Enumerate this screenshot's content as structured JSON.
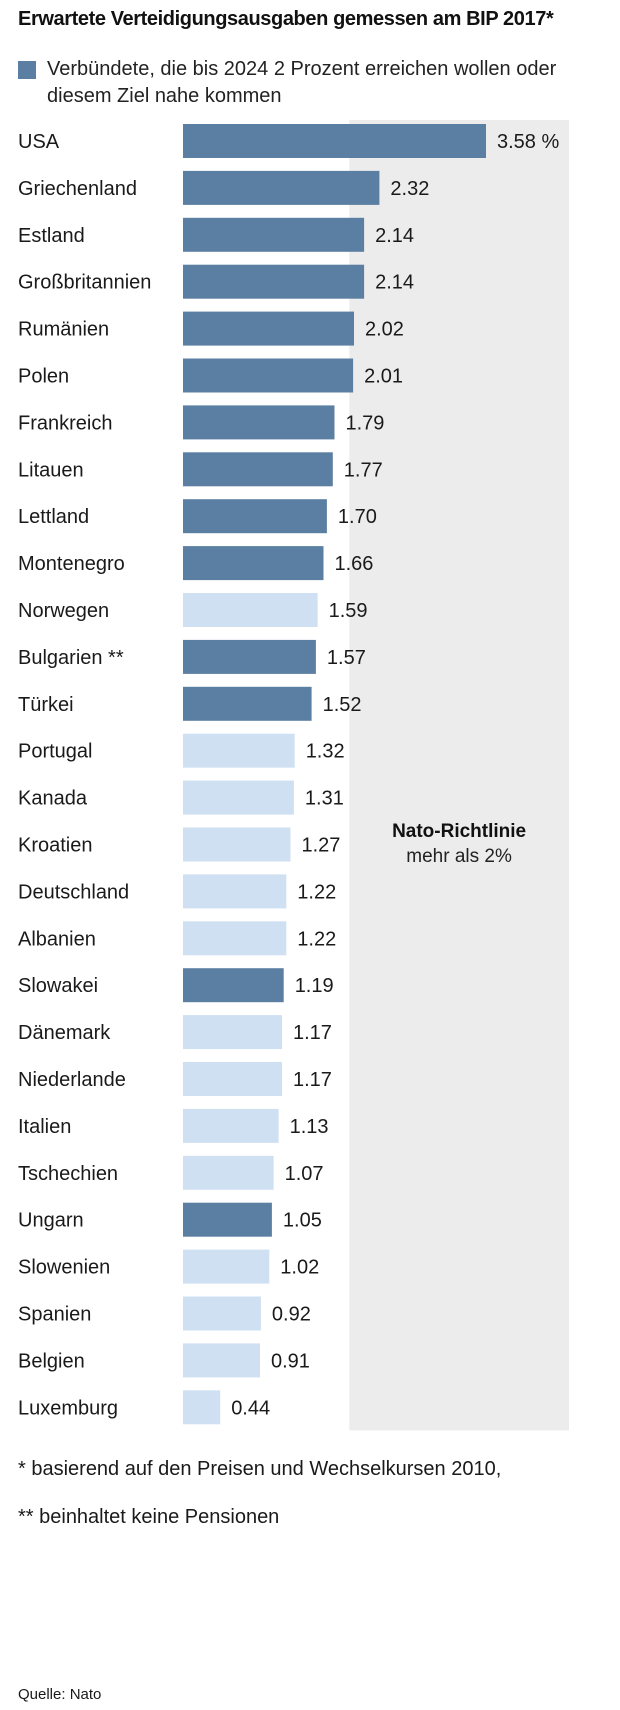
{
  "title": "Erwartete Verteidigungsausgaben gemessen am BIP 2017*",
  "legend": {
    "text": "Verbündete, die bis 2024 2 Prozent erreichen wollen oder diesem Ziel nahe kommen",
    "color": "#5b7fa2"
  },
  "colors": {
    "highlight": "#5b7fa2",
    "other": "#cfe0f3",
    "band": "#ececec"
  },
  "chart_data": {
    "type": "bar",
    "orientation": "horizontal",
    "unit": "%",
    "xlim": [
      0,
      3.58
    ],
    "grid": false,
    "reference_band": {
      "from": 2.0,
      "title": "Nato-Richtlinie",
      "subtitle": "mehr als 2%"
    },
    "categories": [
      "USA",
      "Griechenland",
      "Estland",
      "Großbritannien",
      "Rumänien",
      "Polen",
      "Frankreich",
      "Litauen",
      "Lettland",
      "Montenegro",
      "Norwegen",
      "Bulgarien **",
      "Türkei",
      "Portugal",
      "Kanada",
      "Kroatien",
      "Deutschland",
      "Albanien",
      "Slowakei",
      "Dänemark",
      "Niederlande",
      "Italien",
      "Tschechien",
      "Ungarn",
      "Slowenien",
      "Spanien",
      "Belgien",
      "Luxemburg"
    ],
    "values": [
      3.58,
      2.32,
      2.14,
      2.14,
      2.02,
      2.01,
      1.79,
      1.77,
      1.7,
      1.66,
      1.59,
      1.57,
      1.52,
      1.32,
      1.31,
      1.27,
      1.22,
      1.22,
      1.19,
      1.17,
      1.17,
      1.13,
      1.07,
      1.05,
      1.02,
      0.92,
      0.91,
      0.44
    ],
    "value_labels": [
      "3.58 %",
      "2.32",
      "2.14",
      "2.14",
      "2.02",
      "2.01",
      "1.79",
      "1.77",
      "1.70",
      "1.66",
      "1.59",
      "1.57",
      "1.52",
      "1.32",
      "1.31",
      "1.27",
      "1.22",
      "1.22",
      "1.19",
      "1.17",
      "1.17",
      "1.13",
      "1.07",
      "1.05",
      "1.02",
      "0.92",
      "0.91",
      "0.44"
    ],
    "highlighted": [
      true,
      true,
      true,
      true,
      true,
      true,
      true,
      true,
      true,
      true,
      false,
      true,
      true,
      false,
      false,
      false,
      false,
      false,
      true,
      false,
      false,
      false,
      false,
      true,
      false,
      false,
      false,
      false
    ]
  },
  "footnotes": [
    "* basierend auf den Preisen und Wechselkursen 2010,",
    "** beinhaltet keine Pensionen"
  ],
  "source": "Quelle: Nato"
}
